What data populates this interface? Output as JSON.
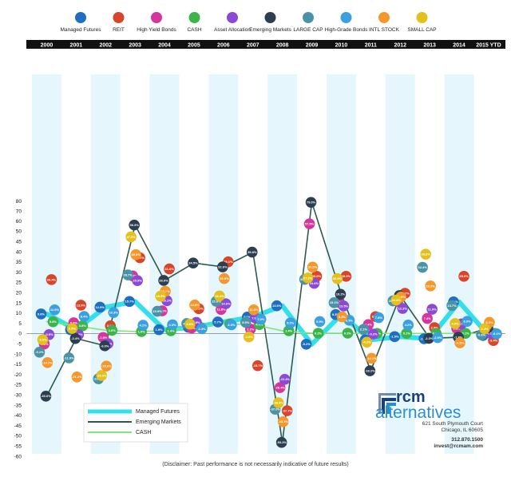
{
  "chart_data": {
    "type": "scatter",
    "title": "",
    "xlabel": "",
    "ylabel": "",
    "categories": [
      "2000",
      "2001",
      "2002",
      "2003",
      "2004",
      "2005",
      "2006",
      "2007",
      "2008",
      "2009",
      "2010",
      "2011",
      "2012",
      "2013",
      "2014",
      "2015 YTD"
    ],
    "y_ticks": [
      80,
      70,
      60,
      50,
      45,
      40,
      35,
      30,
      25,
      20,
      15,
      10,
      5,
      0,
      -5,
      -10,
      -15,
      -20,
      -25,
      -30,
      -35,
      -40,
      -45,
      -50,
      -55,
      -60
    ],
    "grid": false,
    "legend_position": "top",
    "series": [
      {
        "name": "Managed Futures",
        "color": "#1e6fc0",
        "values": [
          9.6,
          1.9,
          12.9,
          15.7,
          1.9,
          3.1,
          5.7,
          8.1,
          13.6,
          -5.2,
          9.3,
          -3.1,
          -1.5,
          -2.5,
          15.5,
          -0.9
        ]
      },
      {
        "name": "REIT",
        "color": "#d9452a",
        "values": [
          26.4,
          13.9,
          3.8,
          37.1,
          31.6,
          12.2,
          35.1,
          -15.7,
          -37.7,
          28.0,
          28.0,
          8.3,
          19.7,
          2.9,
          28.0,
          -3.4
        ]
      },
      {
        "name": "High Yield Bonds",
        "color": "#d6359e",
        "values": [
          -5.1,
          5.3,
          -1.9,
          28.2,
          11.1,
          2.7,
          11.8,
          2.2,
          -26.4,
          57.5,
          15.2,
          4.4,
          15.8,
          7.4,
          2.5,
          1.4
        ]
      },
      {
        "name": "CASH",
        "color": "#3bb44a",
        "values": [
          5.8,
          3.8,
          1.6,
          1.0,
          1.4,
          3.1,
          4.7,
          4.4,
          1.4,
          0.2,
          0.2,
          0.1,
          0.1,
          0.1,
          0.1,
          0.1
        ]
      },
      {
        "name": "Asset Allocation",
        "color": "#8a4ad6",
        "values": [
          -0.5,
          -0.5,
          -4.9,
          25.9,
          16.1,
          5.5,
          14.6,
          7.6,
          -22.4,
          24.6,
          13.5,
          -0.2,
          12.3,
          11.9,
          4.7,
          0.1
        ]
      },
      {
        "name": "Emerging Markets",
        "color": "#2d3e50",
        "values": [
          -30.6,
          -2.4,
          -6.0,
          56.3,
          26.0,
          34.5,
          32.6,
          39.8,
          -53.2,
          79.0,
          19.2,
          -18.2,
          18.6,
          -2.3,
          -1.8,
          2.9
        ]
      },
      {
        "name": "LARGE CAP",
        "color": "#4a93a6",
        "values": [
          -9.1,
          -11.9,
          -22.1,
          28.7,
          10.9,
          4.9,
          15.8,
          5.5,
          -37.0,
          26.5,
          15.1,
          2.1,
          16.0,
          32.4,
          13.7,
          -0.6
        ]
      },
      {
        "name": "High-Grade Bonds",
        "color": "#3aa0e0",
        "values": [
          11.6,
          8.4,
          10.3,
          4.1,
          4.3,
          2.4,
          4.3,
          7.0,
          5.2,
          5.9,
          6.5,
          7.8,
          4.2,
          -2.0,
          6.0,
          -0.1
        ]
      },
      {
        "name": "INTL STOCK",
        "color": "#f4982c",
        "values": [
          -14.2,
          -21.2,
          -15.9,
          38.6,
          20.7,
          14.0,
          26.9,
          11.6,
          -43.1,
          32.5,
          8.2,
          -12.1,
          17.9,
          23.3,
          -4.5,
          5.5
        ]
      },
      {
        "name": "SMALL CAP",
        "color": "#e4c01c",
        "values": [
          -3.0,
          2.5,
          -20.5,
          47.3,
          18.3,
          4.6,
          18.4,
          -1.6,
          -33.8,
          27.2,
          26.9,
          -4.2,
          16.4,
          38.8,
          4.9,
          2.4
        ]
      }
    ],
    "lines": [
      {
        "name": "Managed Futures",
        "color": "#33dfe8",
        "values": [
          9.6,
          1.9,
          12.9,
          15.7,
          1.9,
          3.1,
          5.7,
          8.1,
          13.6,
          -5.2,
          9.3,
          -3.1,
          -1.5,
          -2.5,
          15.5,
          -0.9
        ]
      },
      {
        "name": "Emerging Markets",
        "color": "#2d5a4f",
        "values": [
          -30.6,
          -2.4,
          -6.0,
          56.3,
          26.0,
          34.5,
          32.6,
          39.8,
          -53.2,
          79.0,
          19.2,
          -18.2,
          18.6,
          -2.3,
          -1.8,
          2.9
        ]
      },
      {
        "name": "CASH",
        "color": "#7de87a",
        "values": [
          5.8,
          3.8,
          1.6,
          1.0,
          1.4,
          3.1,
          4.7,
          4.4,
          1.4,
          0.2,
          0.2,
          0.1,
          0.1,
          0.1,
          0.1,
          0.1
        ]
      }
    ]
  },
  "legend": [
    {
      "label": "Managed Futures",
      "color": "#1e6fc0"
    },
    {
      "label": "REIT",
      "color": "#d9452a"
    },
    {
      "label": "High Yield Bonds",
      "color": "#d6359e"
    },
    {
      "label": "CASH",
      "color": "#3bb44a"
    },
    {
      "label": "Asset Allocation",
      "color": "#8a4ad6"
    },
    {
      "label": "Emerging Markets",
      "color": "#2d3e50"
    },
    {
      "label": "LARGE CAP",
      "color": "#4a93a6"
    },
    {
      "label": "High-Grade Bonds",
      "color": "#3aa0e0"
    },
    {
      "label": "INTL STOCK",
      "color": "#f4982c"
    },
    {
      "label": "SMALL CAP",
      "color": "#e4c01c"
    }
  ],
  "inset_legend": [
    {
      "label": "Managed Futures",
      "color": "#33dfe8"
    },
    {
      "label": "Emerging Markets",
      "color": "#2d5a4f"
    },
    {
      "label": "CASH",
      "color": "#7de87a"
    }
  ],
  "logo": {
    "rcm": "rcm",
    "alternatives": "alternatives"
  },
  "address": {
    "line1": "621 South Plymouth Court",
    "line2": "Chicago, IL 60605",
    "phone": "312.870.1500",
    "email": "invest@rcmam.com"
  },
  "disclaimer": "(Disclaimer: Past performance is not necessarily indicative of future results)"
}
